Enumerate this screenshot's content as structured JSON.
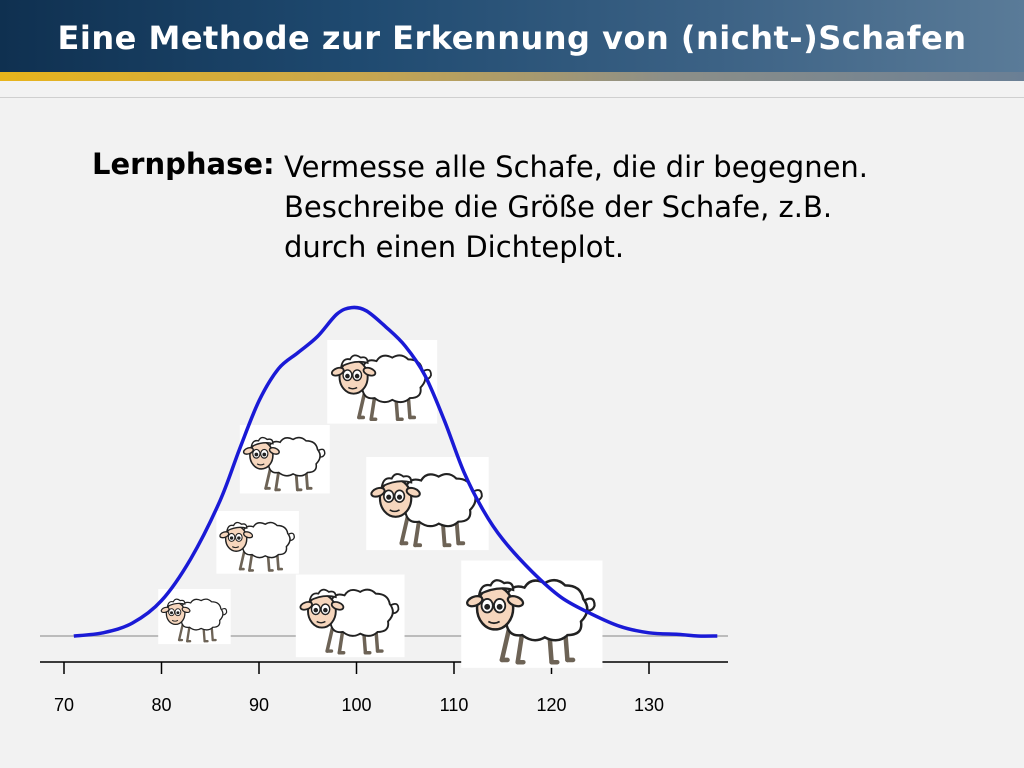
{
  "slide": {
    "title": "Eine Methode zur Erkennung von (nicht-)Schafen",
    "label": "Lernphase:",
    "lines": [
      "Vermesse alle Schafe, die dir begegnen.",
      "Beschreibe die Größe der Schafe, z.B.",
      "durch einen Dichteplot."
    ]
  },
  "colors": {
    "title_bar": "#1f4a70",
    "accent": "#e8b41c",
    "curve": "#1a1ad6"
  },
  "chart_data": {
    "type": "line",
    "title": "",
    "xlabel": "",
    "ylabel": "",
    "xlim": [
      69,
      138
    ],
    "ylim": [
      0,
      1
    ],
    "ticks": [
      70,
      80,
      90,
      100,
      110,
      120,
      130
    ],
    "tick_labels": [
      "70",
      "80",
      "90",
      "100",
      "110",
      "120",
      "130"
    ],
    "series": [
      {
        "values_x": [
          71,
          74,
          77,
          80,
          83,
          86,
          88,
          90,
          92,
          94,
          96,
          98,
          99.5,
          101,
          103,
          105,
          107,
          109,
          111,
          113,
          115,
          118,
          121,
          124,
          127,
          130,
          133,
          135,
          137
        ],
        "values_y": [
          0.0,
          0.01,
          0.04,
          0.11,
          0.24,
          0.42,
          0.58,
          0.73,
          0.83,
          0.88,
          0.93,
          1.0,
          1.02,
          1.01,
          0.96,
          0.9,
          0.81,
          0.67,
          0.51,
          0.39,
          0.3,
          0.2,
          0.12,
          0.07,
          0.03,
          0.01,
          0.005,
          0.0,
          0.0
        ]
      }
    ],
    "sheep": [
      {
        "x": 84.5,
        "size": 0.58
      },
      {
        "x": 92,
        "size": 0.72
      },
      {
        "x": 88,
        "size": 0.66
      },
      {
        "x": 96.5,
        "size": 0.87
      },
      {
        "x": 101,
        "size": 0.88
      },
      {
        "x": 105,
        "size": 0.98
      },
      {
        "x": 116,
        "size": 1.13
      }
    ]
  }
}
